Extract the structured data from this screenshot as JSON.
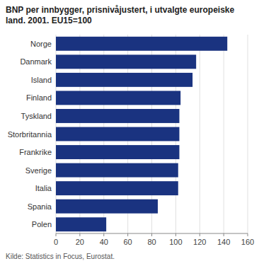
{
  "chart_data": {
    "type": "bar",
    "orientation": "horizontal",
    "title": "BNP per innbygger, prisnivåjustert, i utvalgte europeiske land. 2001. EU15=100",
    "source": "Kilde: Statistics in Focus, Eurostat.",
    "categories": [
      "Norge",
      "Danmark",
      "Island",
      "Finland",
      "Tyskland",
      "Storbritannia",
      "Frankrike",
      "Sverige",
      "Italia",
      "Spania",
      "Polen"
    ],
    "values": [
      143,
      117,
      114,
      104,
      103,
      103,
      103,
      102,
      102,
      85,
      42
    ],
    "color": "#1a3380",
    "xlim": [
      0,
      160
    ],
    "xticks": [
      0,
      20,
      40,
      60,
      80,
      100,
      120,
      140,
      160
    ],
    "grid": true
  }
}
